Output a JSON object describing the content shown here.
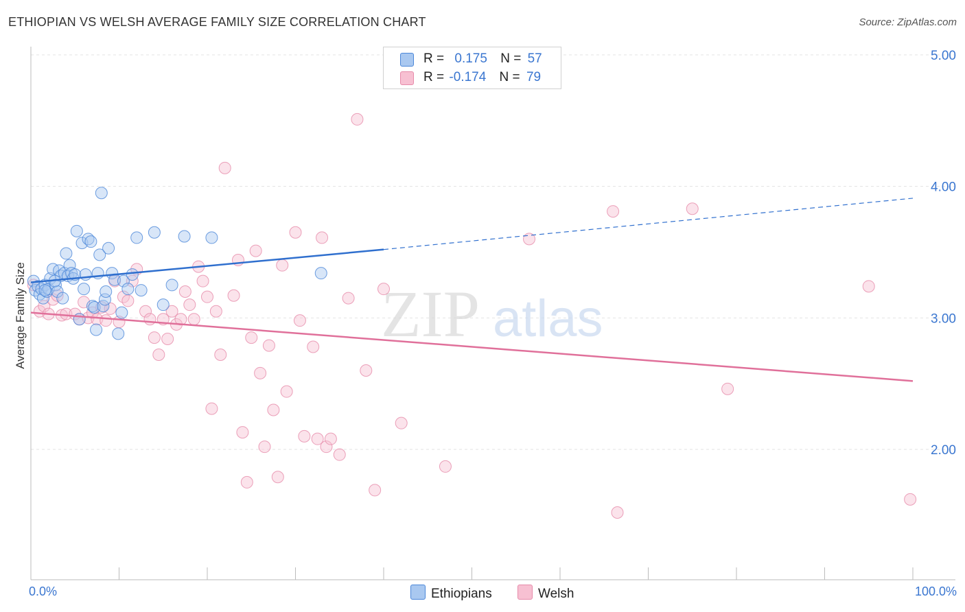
{
  "header": {
    "title": "ETHIOPIAN VS WELSH AVERAGE FAMILY SIZE CORRELATION CHART",
    "source": "Source: ZipAtlas.com"
  },
  "legend": {
    "rows": [
      {
        "r_label": "R =",
        "r_value": "0.175",
        "n_label": "N =",
        "n_value": "57"
      },
      {
        "r_label": "R =",
        "r_value": "-0.174",
        "n_label": "N =",
        "n_value": "79"
      }
    ]
  },
  "watermark": {
    "zip": "ZIP",
    "atlas": "atlas"
  },
  "colors": {
    "ethiopians_fill": "#a9c8f0",
    "ethiopians_stroke": "#4a86d8",
    "ethiopians_line": "#2f6fce",
    "welsh_fill": "#f7c0d2",
    "welsh_stroke": "#e68aa9",
    "welsh_line": "#e0709a",
    "axis_text": "#3a76d0",
    "grid": "#e3e3e3"
  },
  "chart_data": {
    "type": "scatter",
    "title": "ETHIOPIAN VS WELSH AVERAGE FAMILY SIZE CORRELATION CHART",
    "xlabel": "",
    "ylabel": "Average Family Size",
    "xlim": [
      0,
      100
    ],
    "ylim": [
      1.0,
      5.3
    ],
    "x_tick_labels": [
      "0.0%",
      "100.0%"
    ],
    "y_ticks": [
      2.0,
      3.0,
      4.0,
      5.0
    ],
    "y_tick_labels": [
      "2.00",
      "3.00",
      "4.00",
      "5.00"
    ],
    "grid": true,
    "legend_position": "top-center",
    "series": [
      {
        "name": "Ethiopians",
        "r": 0.175,
        "n": 57,
        "points": [
          [
            0.3,
            3.28
          ],
          [
            0.5,
            3.21
          ],
          [
            0.8,
            3.24
          ],
          [
            1.0,
            3.18
          ],
          [
            1.2,
            3.22
          ],
          [
            1.4,
            3.15
          ],
          [
            1.6,
            3.25
          ],
          [
            1.8,
            3.2
          ],
          [
            2.0,
            3.22
          ],
          [
            2.2,
            3.3
          ],
          [
            2.5,
            3.37
          ],
          [
            2.8,
            3.25
          ],
          [
            3.0,
            3.2
          ],
          [
            3.2,
            3.36
          ],
          [
            3.4,
            3.32
          ],
          [
            3.6,
            3.15
          ],
          [
            3.8,
            3.34
          ],
          [
            4.0,
            3.49
          ],
          [
            4.2,
            3.32
          ],
          [
            4.4,
            3.4
          ],
          [
            4.6,
            3.34
          ],
          [
            4.8,
            3.3
          ],
          [
            5.0,
            3.33
          ],
          [
            5.2,
            3.66
          ],
          [
            5.5,
            2.99
          ],
          [
            5.8,
            3.57
          ],
          [
            6.0,
            3.22
          ],
          [
            6.2,
            3.33
          ],
          [
            6.5,
            3.6
          ],
          [
            6.8,
            3.58
          ],
          [
            7.0,
            3.09
          ],
          [
            7.2,
            3.08
          ],
          [
            7.4,
            2.91
          ],
          [
            7.6,
            3.34
          ],
          [
            7.8,
            3.48
          ],
          [
            8.0,
            3.95
          ],
          [
            8.2,
            3.09
          ],
          [
            8.4,
            3.14
          ],
          [
            8.5,
            3.2
          ],
          [
            8.8,
            3.53
          ],
          [
            9.2,
            3.34
          ],
          [
            9.5,
            3.29
          ],
          [
            9.9,
            2.88
          ],
          [
            10.3,
            3.04
          ],
          [
            10.5,
            3.28
          ],
          [
            11.0,
            3.22
          ],
          [
            11.5,
            3.33
          ],
          [
            12.0,
            3.61
          ],
          [
            12.5,
            3.21
          ],
          [
            14.0,
            3.65
          ],
          [
            15.0,
            3.1
          ],
          [
            16.0,
            3.25
          ],
          [
            17.4,
            3.62
          ],
          [
            20.5,
            3.61
          ],
          [
            32.9,
            3.34
          ],
          [
            2.7,
            3.28
          ],
          [
            1.6,
            3.21
          ]
        ]
      },
      {
        "name": "Welsh",
        "r": -0.174,
        "n": 79,
        "points": [
          [
            0.3,
            3.25
          ],
          [
            1.0,
            3.05
          ],
          [
            1.5,
            3.09
          ],
          [
            2.0,
            3.03
          ],
          [
            2.5,
            3.14
          ],
          [
            3.0,
            3.17
          ],
          [
            3.5,
            3.02
          ],
          [
            4.0,
            3.03
          ],
          [
            5.0,
            3.03
          ],
          [
            5.5,
            2.99
          ],
          [
            6.0,
            3.12
          ],
          [
            6.5,
            3.0
          ],
          [
            7.0,
            3.04
          ],
          [
            7.5,
            2.99
          ],
          [
            8.0,
            3.08
          ],
          [
            8.5,
            2.98
          ],
          [
            9.0,
            3.07
          ],
          [
            9.5,
            3.28
          ],
          [
            10.0,
            2.97
          ],
          [
            10.5,
            3.16
          ],
          [
            11.0,
            3.13
          ],
          [
            11.5,
            3.28
          ],
          [
            12.0,
            3.37
          ],
          [
            13.0,
            3.05
          ],
          [
            13.5,
            2.99
          ],
          [
            14.0,
            2.85
          ],
          [
            14.5,
            2.72
          ],
          [
            15.0,
            2.99
          ],
          [
            15.5,
            2.84
          ],
          [
            16.0,
            3.05
          ],
          [
            16.5,
            2.95
          ],
          [
            17.0,
            2.99
          ],
          [
            17.5,
            3.2
          ],
          [
            18.0,
            3.1
          ],
          [
            18.5,
            2.99
          ],
          [
            19.0,
            3.39
          ],
          [
            19.5,
            3.28
          ],
          [
            20.0,
            3.16
          ],
          [
            20.5,
            2.31
          ],
          [
            21.0,
            3.05
          ],
          [
            21.5,
            2.72
          ],
          [
            22.0,
            4.14
          ],
          [
            23.0,
            3.17
          ],
          [
            23.5,
            3.44
          ],
          [
            24.0,
            2.13
          ],
          [
            24.5,
            1.75
          ],
          [
            25.0,
            2.85
          ],
          [
            25.5,
            3.51
          ],
          [
            26.0,
            2.58
          ],
          [
            26.5,
            2.02
          ],
          [
            27.0,
            2.79
          ],
          [
            27.5,
            2.3
          ],
          [
            28.0,
            1.79
          ],
          [
            28.5,
            3.4
          ],
          [
            29.0,
            2.44
          ],
          [
            30.0,
            3.65
          ],
          [
            30.5,
            2.98
          ],
          [
            31.0,
            2.1
          ],
          [
            32.0,
            2.78
          ],
          [
            32.5,
            2.08
          ],
          [
            33.0,
            3.61
          ],
          [
            33.5,
            2.02
          ],
          [
            34.0,
            2.08
          ],
          [
            35.0,
            1.96
          ],
          [
            36.0,
            3.15
          ],
          [
            37.0,
            4.51
          ],
          [
            38.0,
            2.6
          ],
          [
            39.0,
            1.69
          ],
          [
            40.0,
            3.22
          ],
          [
            42.0,
            2.2
          ],
          [
            47.0,
            1.87
          ],
          [
            56.5,
            3.6
          ],
          [
            66.5,
            1.52
          ],
          [
            66.0,
            3.81
          ],
          [
            75.0,
            3.83
          ],
          [
            79.0,
            2.46
          ],
          [
            95.0,
            3.24
          ],
          [
            99.7,
            1.62
          ],
          [
            47.5,
            5.0
          ]
        ]
      }
    ],
    "trend_lines": [
      {
        "series": "Ethiopians",
        "x0": 0,
        "y0": 3.27,
        "x1": 40,
        "y1": 3.52,
        "dashed_to": [
          100,
          3.91
        ]
      },
      {
        "series": "Welsh",
        "x0": 0,
        "y0": 3.04,
        "x1": 100,
        "y1": 2.52
      }
    ]
  },
  "bottom_legend": {
    "items": [
      {
        "label": "Ethiopians"
      },
      {
        "label": "Welsh"
      }
    ]
  }
}
